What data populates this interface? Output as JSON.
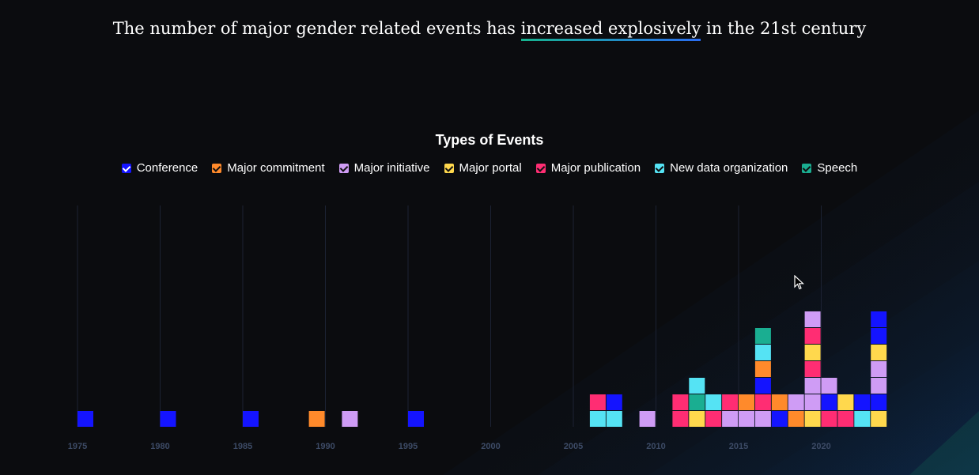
{
  "headline": {
    "before": "The number of major gender related events has ",
    "highlight": "increased explosively",
    "after": " in the 21st century"
  },
  "chart_data": {
    "type": "stacked-unit-bar",
    "title": "Types of Events",
    "legend_position": "top",
    "grid": "vertical",
    "xlim": [
      1975,
      2023
    ],
    "x_ticks": [
      "1975",
      "1980",
      "1985",
      "1990",
      "1995",
      "2000",
      "2005",
      "2010",
      "2015",
      "2020"
    ],
    "categories": [
      {
        "name": "Conference",
        "color": "#1414ff"
      },
      {
        "name": "Major commitment",
        "color": "#ff8a2b"
      },
      {
        "name": "Major initiative",
        "color": "#cf9cf5"
      },
      {
        "name": "Major portal",
        "color": "#ffd84d"
      },
      {
        "name": "Major publication",
        "color": "#ff2d73"
      },
      {
        "name": "New data organization",
        "color": "#55e3f4"
      },
      {
        "name": "Speech",
        "color": "#1aae91"
      }
    ],
    "stacks": [
      {
        "x": 1975,
        "events": [
          "Conference"
        ]
      },
      {
        "x": 1980,
        "events": [
          "Conference"
        ]
      },
      {
        "x": 1985,
        "events": [
          "Conference"
        ]
      },
      {
        "x": 1989,
        "events": [
          "Major commitment"
        ]
      },
      {
        "x": 1991,
        "events": [
          "Major initiative"
        ]
      },
      {
        "x": 1995,
        "events": [
          "Conference"
        ]
      },
      {
        "x": 2006,
        "events": [
          "New data organization",
          "Major publication"
        ]
      },
      {
        "x": 2007,
        "events": [
          "New data organization",
          "Conference"
        ]
      },
      {
        "x": 2009,
        "events": [
          "Major initiative"
        ]
      },
      {
        "x": 2011,
        "events": [
          "Major publication",
          "Major publication"
        ]
      },
      {
        "x": 2012,
        "events": [
          "Major portal",
          "Speech",
          "New data organization"
        ]
      },
      {
        "x": 2013,
        "events": [
          "Major publication",
          "New data organization"
        ]
      },
      {
        "x": 2014,
        "events": [
          "Major initiative",
          "Major publication"
        ]
      },
      {
        "x": 2015,
        "events": [
          "Major initiative",
          "Major commitment"
        ]
      },
      {
        "x": 2016,
        "events": [
          "Major initiative",
          "Major publication",
          "Conference",
          "Major commitment",
          "New data organization",
          "Speech"
        ]
      },
      {
        "x": 2017,
        "events": [
          "Conference",
          "Major commitment"
        ]
      },
      {
        "x": 2018,
        "events": [
          "Major commitment",
          "Major initiative"
        ]
      },
      {
        "x": 2019,
        "events": [
          "Major portal",
          "Major initiative",
          "Major initiative",
          "Major publication",
          "Major portal",
          "Major publication",
          "Major initiative"
        ]
      },
      {
        "x": 2020,
        "events": [
          "Major publication",
          "Conference",
          "Major initiative"
        ]
      },
      {
        "x": 2021,
        "events": [
          "Major publication",
          "Major portal"
        ]
      },
      {
        "x": 2022,
        "events": [
          "New data organization",
          "Conference"
        ]
      },
      {
        "x": 2023,
        "events": [
          "Major portal",
          "Conference",
          "Major initiative",
          "Major initiative",
          "Major portal",
          "Conference",
          "Conference"
        ]
      }
    ]
  }
}
